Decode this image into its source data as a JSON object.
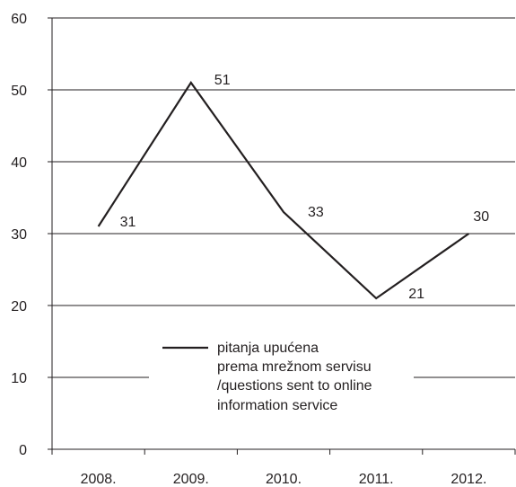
{
  "chart_data": {
    "type": "line",
    "categories": [
      "2008.",
      "2009.",
      "2010.",
      "2011.",
      "2012."
    ],
    "series": [
      {
        "name": "pitanja upućena prema mrežnom servisu /questions sent to online information service",
        "values": [
          31,
          51,
          33,
          21,
          30
        ]
      }
    ],
    "data_labels": [
      "31",
      "51",
      "33",
      "21",
      "30"
    ],
    "ylim": [
      0,
      60
    ],
    "yticks": [
      0,
      10,
      20,
      30,
      40,
      50,
      60
    ],
    "grid": true,
    "legend": {
      "placement": "center-bottom",
      "lines": [
        "pitanja upućena",
        "prema mrežnom servisu",
        "/questions sent to online",
        "information service"
      ]
    },
    "line_color": "#231f20",
    "grid_color": "#231f20"
  }
}
